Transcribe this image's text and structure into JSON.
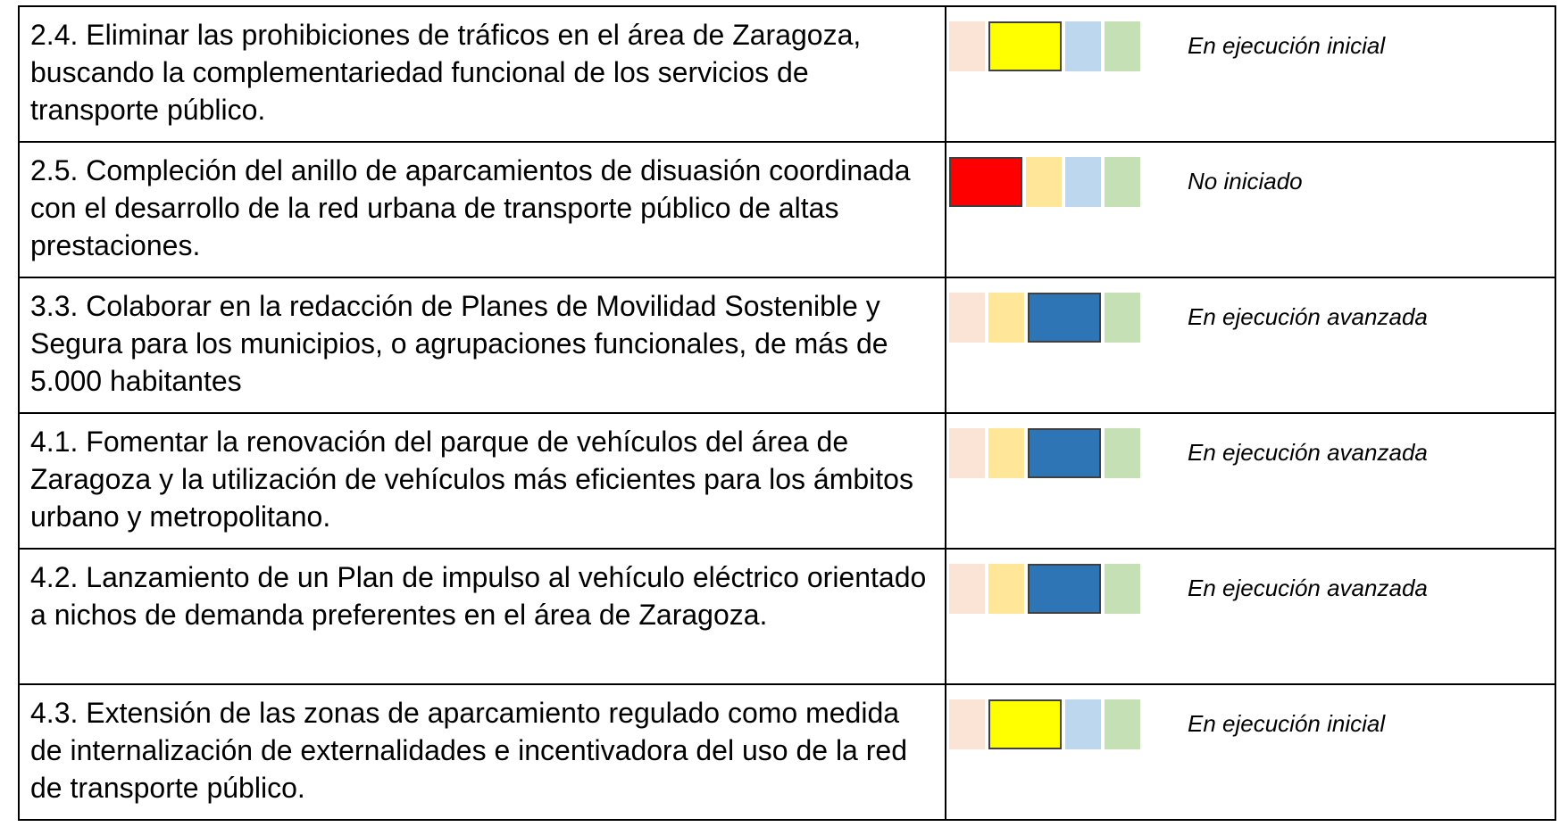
{
  "indicator_colors": [
    {
      "light": "#fbe3d6",
      "strong": "#ff0000"
    },
    {
      "light": "#ffe699",
      "strong": "#ffff00"
    },
    {
      "light": "#bdd7ee",
      "strong": "#2e75b6"
    },
    {
      "light": "#c5e0b4",
      "strong": "#70ad47"
    }
  ],
  "rows": [
    {
      "text": "2.4. Eliminar las prohibiciones de tráficos en el área de Zaragoza, buscando la complementariedad funcional de los servicios de transporte público.",
      "indicator": 1,
      "status": "En ejecución inicial"
    },
    {
      "text": "2.5. Compleción del anillo de aparcamientos de disuasión coordinada con el desarrollo de la red urbana de transporte público de altas prestaciones.",
      "indicator": 0,
      "status": "No iniciado"
    },
    {
      "text": "3.3. Colaborar en la redacción de Planes de Movilidad Sostenible y Segura para los municipios, o agrupaciones funcionales, de más de 5.000 habitantes",
      "indicator": 2,
      "status": "En ejecución avanzada"
    },
    {
      "text": "4.1. Fomentar la renovación del parque de vehículos del área de Zaragoza y la utilización de vehículos más eficientes para los ámbitos urbano y metropolitano.",
      "indicator": 2,
      "status": "En ejecución avanzada"
    },
    {
      "text": "4.2. Lanzamiento de un Plan de impulso al vehículo eléctrico orientado a nichos de demanda preferentes en el área de Zaragoza.",
      "indicator": 2,
      "status": "En ejecución avanzada"
    },
    {
      "text": "4.3. Extensión de las zonas de aparcamiento regulado como medida de internalización de externalidades e incentivadora del uso de la red de transporte público.",
      "indicator": 1,
      "status": "En ejecución inicial"
    }
  ]
}
